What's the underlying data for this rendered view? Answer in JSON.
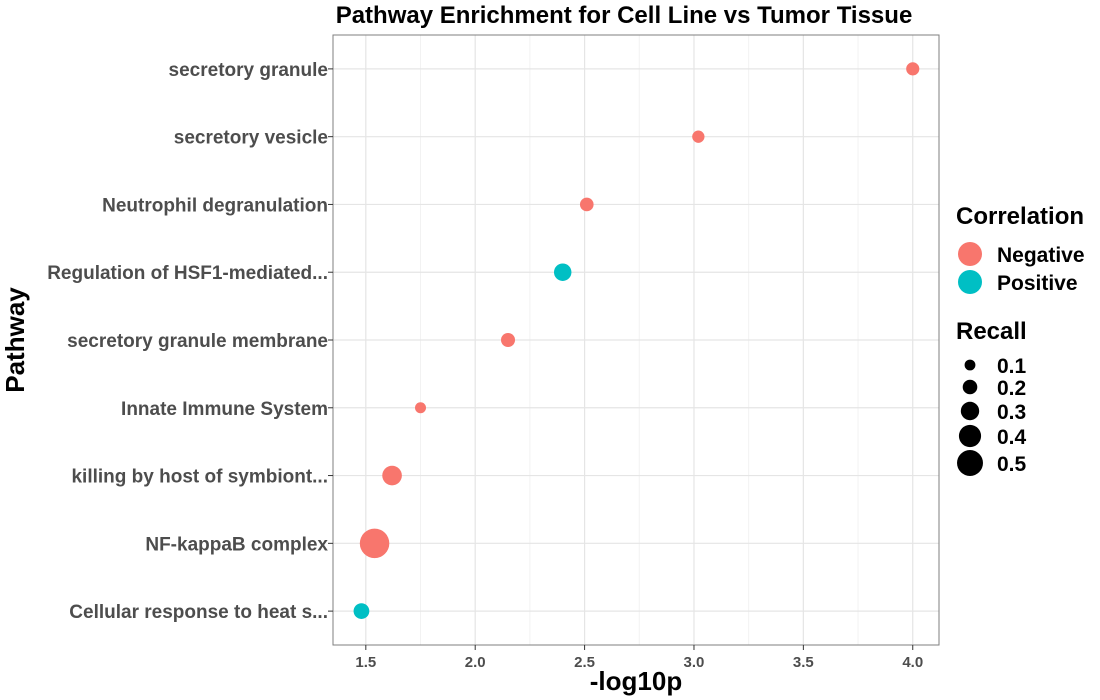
{
  "chart_data": {
    "type": "scatter",
    "title": "Pathway Enrichment for Cell Line vs Tumor Tissue",
    "xlabel": "-log10p",
    "ylabel": "Pathway",
    "xlim": [
      1.35,
      4.12
    ],
    "xticks": [
      "1.5",
      "2.0",
      "2.5",
      "3.0",
      "3.5",
      "4.0"
    ],
    "grid": true,
    "legend_position": "right",
    "categories": [
      "secretory granule",
      "secretory vesicle",
      "Neutrophil degranulation",
      "Regulation of HSF1-mediated...",
      "secretory granule membrane",
      "Innate Immune System",
      "killing by host of symbiont...",
      "NF-kappaB complex",
      "Cellular response to heat s..."
    ],
    "points": [
      {
        "pathway": "secretory granule",
        "x": 4.0,
        "recall": 0.12,
        "correlation": "Negative"
      },
      {
        "pathway": "secretory vesicle",
        "x": 3.02,
        "recall": 0.1,
        "correlation": "Negative"
      },
      {
        "pathway": "Neutrophil degranulation",
        "x": 2.51,
        "recall": 0.13,
        "correlation": "Negative"
      },
      {
        "pathway": "Regulation of HSF1-mediated...",
        "x": 2.4,
        "recall": 0.22,
        "correlation": "Positive"
      },
      {
        "pathway": "secretory granule membrane",
        "x": 2.15,
        "recall": 0.14,
        "correlation": "Negative"
      },
      {
        "pathway": "Innate Immune System",
        "x": 1.75,
        "recall": 0.07,
        "correlation": "Negative"
      },
      {
        "pathway": "killing by host of symbiont...",
        "x": 1.62,
        "recall": 0.27,
        "correlation": "Negative"
      },
      {
        "pathway": "NF-kappaB complex",
        "x": 1.54,
        "recall": 0.5,
        "correlation": "Negative"
      },
      {
        "pathway": "Cellular response to heat s...",
        "x": 1.48,
        "recall": 0.18,
        "correlation": "Positive"
      }
    ],
    "legend": {
      "color_title": "Correlation",
      "color_entries": [
        {
          "label": "Negative",
          "color": "#f8766d"
        },
        {
          "label": "Positive",
          "color": "#00bfc4"
        }
      ],
      "size_title": "Recall",
      "size_entries": [
        {
          "label": "0.1",
          "value": 0.1
        },
        {
          "label": "0.2",
          "value": 0.2
        },
        {
          "label": "0.3",
          "value": 0.3
        },
        {
          "label": "0.4",
          "value": 0.4
        },
        {
          "label": "0.5",
          "value": 0.5
        }
      ]
    }
  }
}
